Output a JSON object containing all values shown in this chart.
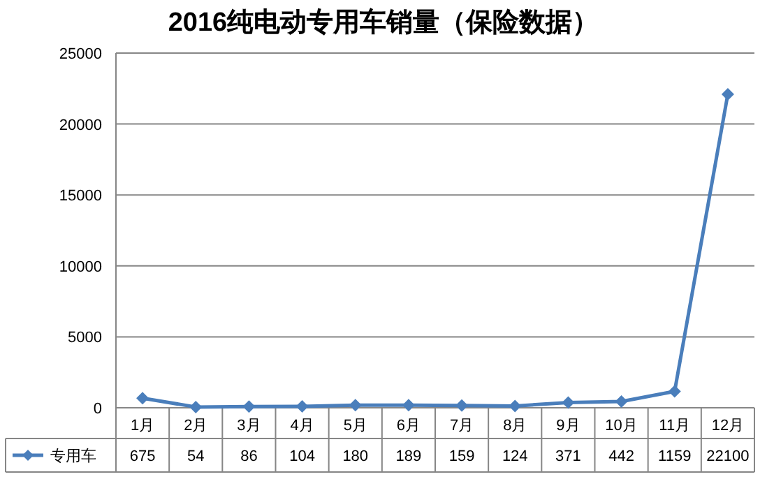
{
  "chart_data": {
    "type": "line",
    "title": "2016纯电动专用车销量（保险数据）",
    "categories": [
      "1月",
      "2月",
      "3月",
      "4月",
      "5月",
      "6月",
      "7月",
      "8月",
      "9月",
      "10月",
      "11月",
      "12月"
    ],
    "series": [
      {
        "name": "专用车",
        "color": "#4a7ebb",
        "values": [
          675,
          54,
          86,
          104,
          180,
          189,
          159,
          124,
          371,
          442,
          1159,
          22100
        ]
      }
    ],
    "ylim": [
      0,
      25000
    ],
    "yticks": [
      0,
      5000,
      10000,
      15000,
      20000,
      25000
    ],
    "grid": "y",
    "marker": "diamond",
    "line_style": "solid",
    "data_labels": true,
    "legend": "bottom left"
  }
}
